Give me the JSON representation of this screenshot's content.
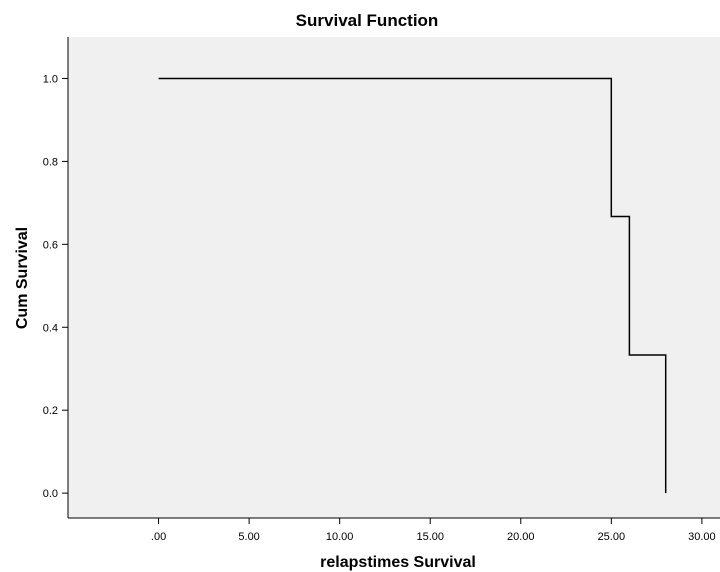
{
  "chart_data": {
    "type": "line",
    "step": true,
    "title": "Survival Function",
    "xlabel": "relapstimes Survival",
    "ylabel": "Cum Survival",
    "xlim": [
      -5,
      31
    ],
    "ylim": [
      -0.06,
      1.1
    ],
    "x_ticks": [
      0,
      5,
      10,
      15,
      20,
      25,
      30
    ],
    "x_tick_labels": [
      ".00",
      "5.00",
      "10.00",
      "15.00",
      "20.00",
      "25.00",
      "30.00"
    ],
    "y_ticks": [
      0,
      0.2,
      0.4,
      0.6,
      0.8,
      1
    ],
    "y_tick_labels": [
      "0.0",
      "0.2",
      "0.4",
      "0.6",
      "0.8",
      "1.0"
    ],
    "grid": false,
    "legend": false,
    "series": [
      {
        "x": [
          0,
          25,
          25,
          26,
          26,
          28,
          28
        ],
        "y": [
          1,
          1,
          0.667,
          0.667,
          0.333,
          0.333,
          0
        ]
      }
    ],
    "colors": {
      "plot_background": "#f0f0f0",
      "line": "#000000",
      "axis": "#000000"
    }
  }
}
